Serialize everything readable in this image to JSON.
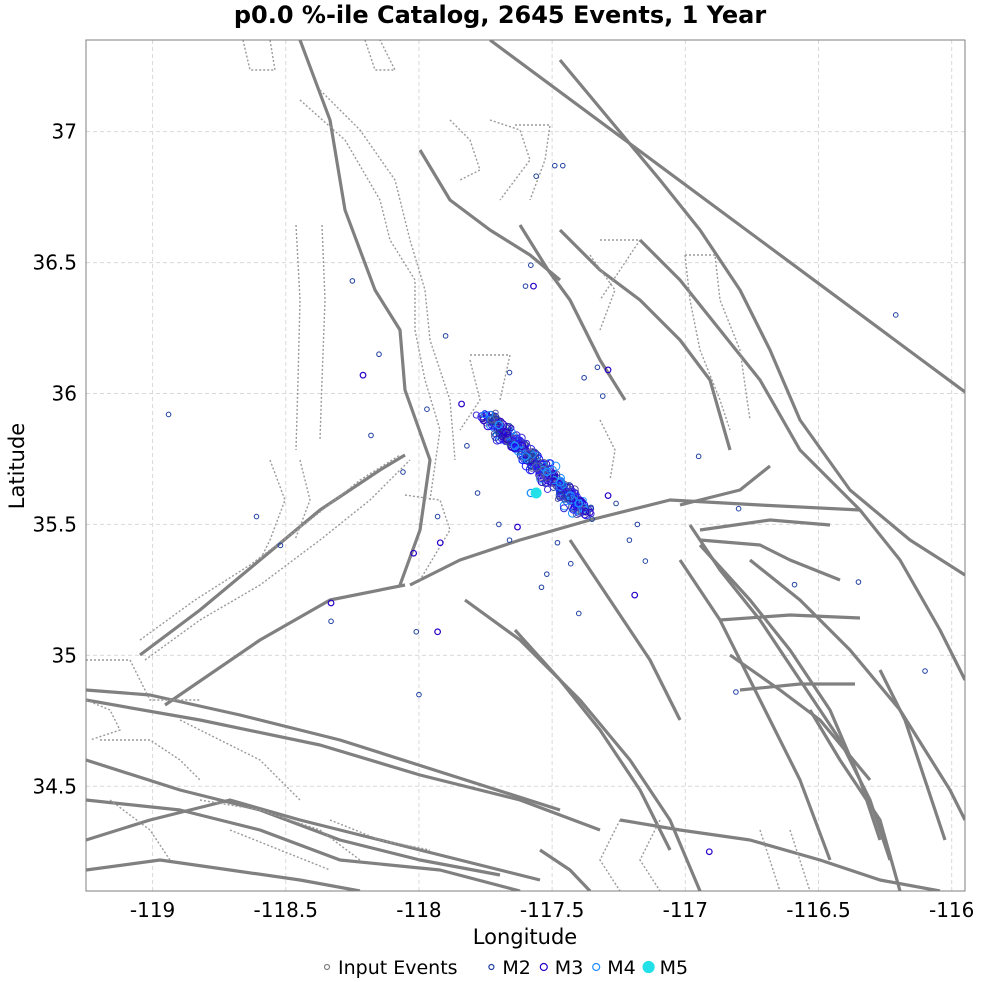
{
  "chart_data": {
    "type": "scatter",
    "title": "p0.0 %-ile Catalog, 2645 Events, 1 Year",
    "xlabel": "Longitude",
    "ylabel": "Latitude",
    "xlim": [
      -119.25,
      -115.95
    ],
    "ylim": [
      34.1,
      37.35
    ],
    "xticks": [
      -119,
      -118.5,
      -118,
      -117.5,
      -117,
      -116.5,
      -116
    ],
    "xtick_labels": [
      "-119",
      "-118.5",
      "-118",
      "-117.5",
      "-117",
      "-116.5",
      "-116"
    ],
    "yticks": [
      34.5,
      35,
      35.5,
      36,
      36.5,
      37
    ],
    "ytick_labels": [
      "34.5",
      "35",
      "35.5",
      "36",
      "36.5",
      "37"
    ],
    "grid": true,
    "legend": {
      "position": "bottom-center",
      "entries": [
        {
          "label": "Input Events",
          "color": "#808080",
          "style": "open-circle-small"
        },
        {
          "label": "M2",
          "color": "#1f3fa0",
          "style": "open-circle-small"
        },
        {
          "label": "M3",
          "color": "#2a00c8",
          "style": "open-circle"
        },
        {
          "label": "M4",
          "color": "#1e90ff",
          "style": "open-circle"
        },
        {
          "label": "M5",
          "color": "#22e0e8",
          "style": "filled-circle"
        }
      ]
    },
    "cluster": {
      "description": "dense aftershock sequence along NW-SE trend",
      "center": [
        -117.55,
        35.72
      ],
      "trend_start": [
        -117.75,
        35.92
      ],
      "trend_end": [
        -117.38,
        35.55
      ],
      "count": 2645
    },
    "series": [
      {
        "name": "M2",
        "points": [
          [
            -118.94,
            35.92
          ],
          [
            -118.61,
            35.53
          ],
          [
            -118.52,
            35.42
          ],
          [
            -118.33,
            35.13
          ],
          [
            -118.25,
            36.43
          ],
          [
            -118.18,
            35.84
          ],
          [
            -118.15,
            36.15
          ],
          [
            -118.06,
            35.7
          ],
          [
            -118.01,
            35.09
          ],
          [
            -118.0,
            34.85
          ],
          [
            -117.97,
            35.94
          ],
          [
            -117.93,
            35.53
          ],
          [
            -117.9,
            36.22
          ],
          [
            -117.66,
            36.08
          ],
          [
            -117.6,
            36.41
          ],
          [
            -117.58,
            36.49
          ],
          [
            -117.56,
            36.83
          ],
          [
            -117.54,
            35.26
          ],
          [
            -117.52,
            35.31
          ],
          [
            -117.48,
            35.43
          ],
          [
            -117.43,
            35.35
          ],
          [
            -117.4,
            35.16
          ],
          [
            -117.38,
            36.06
          ],
          [
            -117.33,
            36.1
          ],
          [
            -117.31,
            35.99
          ],
          [
            -117.26,
            35.58
          ],
          [
            -117.21,
            35.44
          ],
          [
            -117.18,
            35.5
          ],
          [
            -117.15,
            35.36
          ],
          [
            -116.95,
            35.76
          ],
          [
            -116.81,
            34.86
          ],
          [
            -116.8,
            35.56
          ],
          [
            -116.59,
            35.27
          ],
          [
            -116.35,
            35.28
          ],
          [
            -116.21,
            36.3
          ],
          [
            -116.1,
            34.94
          ],
          [
            -117.46,
            36.87
          ],
          [
            -117.49,
            36.87
          ],
          [
            -117.7,
            35.5
          ],
          [
            -117.78,
            35.62
          ],
          [
            -117.66,
            35.44
          ],
          [
            -117.44,
            35.6
          ],
          [
            -117.35,
            35.52
          ],
          [
            -117.82,
            35.8
          ]
        ]
      },
      {
        "name": "M3",
        "points": [
          [
            -118.21,
            36.07
          ],
          [
            -118.33,
            35.2
          ],
          [
            -118.02,
            35.39
          ],
          [
            -117.93,
            35.09
          ],
          [
            -117.57,
            36.41
          ],
          [
            -117.29,
            36.09
          ],
          [
            -117.19,
            35.23
          ],
          [
            -117.29,
            35.61
          ],
          [
            -116.91,
            34.25
          ],
          [
            -117.92,
            35.43
          ],
          [
            -117.84,
            35.96
          ],
          [
            -117.63,
            35.49
          ]
        ]
      },
      {
        "name": "M4",
        "points": [
          [
            -117.58,
            35.62
          ],
          [
            -117.64,
            35.8
          ],
          [
            -117.47,
            35.66
          ],
          [
            -117.7,
            35.88
          ],
          [
            -117.52,
            35.7
          ],
          [
            -117.4,
            35.58
          ],
          [
            -117.6,
            35.76
          ]
        ]
      },
      {
        "name": "M5",
        "points": [
          [
            -117.56,
            35.62
          ]
        ]
      }
    ]
  }
}
